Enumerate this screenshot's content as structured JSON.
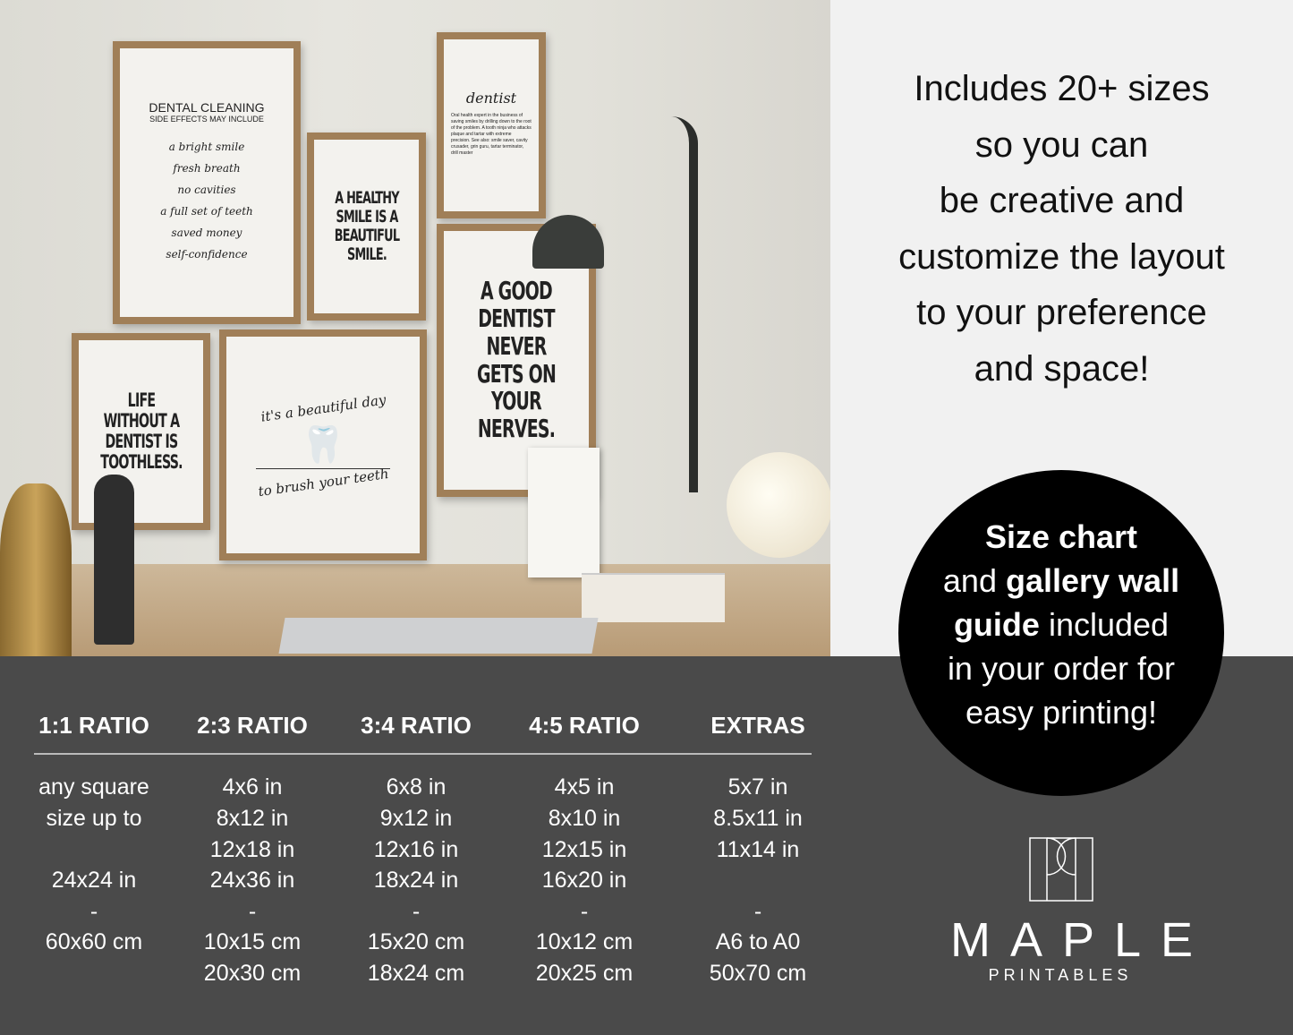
{
  "posters": {
    "dental_cleaning": {
      "title": "DENTAL CLEANING",
      "subtitle": "SIDE EFFECTS MAY INCLUDE",
      "lines": [
        "a bright smile",
        "fresh breath",
        "no cavities",
        "a full set of teeth",
        "saved money",
        "self-confidence"
      ]
    },
    "healthy_smile": "A HEALTHY SMILE IS A BEAUTIFUL SMILE.",
    "dentist_definition": {
      "word": "dentist",
      "body": "Oral health expert in the business of saving smiles by drilling down to the root of the problem. A tooth ninja who attacks plaque and tartar with extreme precision. See also: smile saver, cavity crusader, grin guru, tartar terminator, drill master"
    },
    "good_dentist": "A GOOD DENTIST NEVER GETS ON YOUR NERVES.",
    "life_without": "LIFE WITHOUT A DENTIST IS TOOTHLESS.",
    "beautiful_day": {
      "top": "it's a beautiful day",
      "bottom": "to brush your teeth"
    }
  },
  "headline": [
    "Includes 20+ sizes",
    "so you can",
    "be creative and",
    "customize the layout",
    "to your preference",
    "and space!"
  ],
  "circle": {
    "b1": "Size chart",
    "t1": "and ",
    "b2": "gallery wall",
    "b3": "guide",
    "t2": " included",
    "t3": "in your order for",
    "t4": "easy printing!"
  },
  "size_table": [
    {
      "header": "1:1 RATIO",
      "values": [
        "any square",
        "size up to",
        "",
        "24x24 in",
        "-",
        "60x60 cm",
        ""
      ]
    },
    {
      "header": "2:3 RATIO",
      "values": [
        "4x6 in",
        "8x12 in",
        "12x18 in",
        "24x36 in",
        "-",
        "10x15 cm",
        "20x30 cm"
      ]
    },
    {
      "header": "3:4 RATIO",
      "values": [
        "6x8 in",
        "9x12 in",
        "12x16 in",
        "18x24 in",
        "-",
        "15x20 cm",
        "18x24 cm"
      ]
    },
    {
      "header": "4:5 RATIO",
      "values": [
        "4x5 in",
        "8x10 in",
        "12x15 in",
        "16x20 in",
        "-",
        "10x12 cm",
        "20x25 cm"
      ]
    },
    {
      "header": "EXTRAS",
      "values": [
        "5x7 in",
        "8.5x11 in",
        "11x14 in",
        "",
        "-",
        "A6 to A0",
        "50x70 cm"
      ]
    }
  ],
  "brand": {
    "name": "MAPLE",
    "tagline": "PRINTABLES"
  },
  "colors": {
    "dark_panel": "#4a4a4a",
    "light_panel": "#f1f1f1",
    "circle": "#000000",
    "frame_wood": "#a07f58"
  }
}
